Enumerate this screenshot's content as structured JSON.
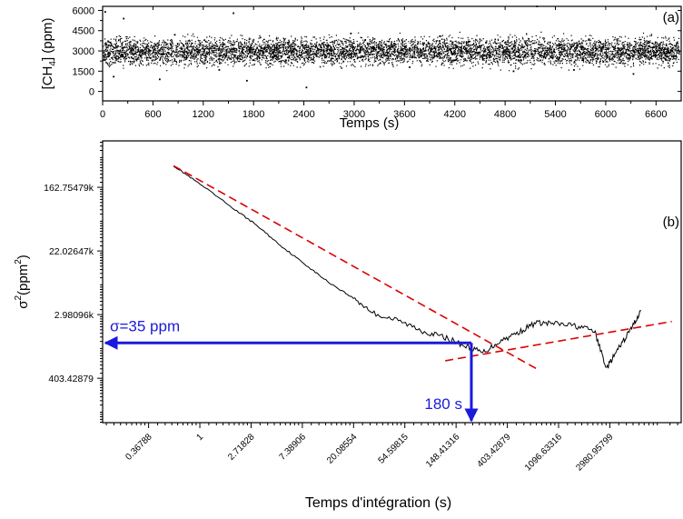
{
  "chart_data": [
    {
      "type": "scatter",
      "panel_label": "(a)",
      "title": "",
      "xlabel": "Temps (s)",
      "ylabel_main": "[CH",
      "ylabel_sub": "4",
      "ylabel_tail": "] (ppm)",
      "xlim": [
        0,
        6900
      ],
      "ylim": [
        -700,
        6300
      ],
      "xticks": [
        0,
        600,
        1200,
        1800,
        2400,
        3000,
        3600,
        4200,
        4800,
        5400,
        6000,
        6600
      ],
      "xtick_labels": [
        "0",
        "600",
        "1200",
        "1800",
        "2400",
        "3000",
        "3600",
        "4200",
        "4800",
        "5400",
        "6000",
        "6600"
      ],
      "yticks": [
        0,
        1500,
        3000,
        4500,
        6000
      ],
      "ytick_labels": [
        "0",
        "1500",
        "3000",
        "4500",
        "6000"
      ],
      "series": [
        {
          "x": [
            30,
            130,
            250,
            380,
            520,
            680,
            860,
            1050,
            1230,
            1390,
            1560,
            1720,
            1880,
            2050,
            2210,
            2430,
            2610,
            2790,
            2960,
            3130,
            3310,
            3490,
            3660,
            3840,
            4020,
            4190,
            4370,
            4550,
            4730,
            4900,
            5080,
            5180,
            5260,
            5440,
            5620,
            5800,
            5970,
            6150,
            6330,
            6510,
            6690,
            6850
          ],
          "y": [
            5900,
            1100,
            5400,
            2800,
            3300,
            900,
            4200,
            2500,
            3700,
            1600,
            5800,
            800,
            4000,
            2600,
            3600,
            300,
            3100,
            2400,
            4300,
            3800,
            2100,
            3500,
            1800,
            3000,
            4100,
            2300,
            3700,
            2700,
            3300,
            1500,
            3900,
            6300,
            2600,
            3400,
            1600,
            3800,
            2200,
            3200,
            1300,
            3700,
            2500,
            3600
          ]
        }
      ]
    },
    {
      "type": "line",
      "panel_label": "(b)",
      "title": "",
      "xlabel": "Temps d'intégration (s)",
      "ylabel_main": "σ",
      "ylabel_sup": "2",
      "ylabel_mid": "(ppm",
      "ylabel_sup2": "2",
      "ylabel_tail": ")",
      "xscale": "log",
      "yscale": "log",
      "xlim": [
        0.15,
        12000
      ],
      "ylim": [
        100,
        700000
      ],
      "xticks": [
        0.36788,
        1,
        2.71828,
        7.38906,
        20.08554,
        54.59815,
        148.41316,
        403.42879,
        1096.63316,
        2980.95799
      ],
      "xtick_labels": [
        "0.36788",
        "1",
        "2.71828",
        "7.38906",
        "20.08554",
        "54.59815",
        "148.41316",
        "403.42879",
        "1096.63316",
        "2980.95799"
      ],
      "yticks": [
        403.42879,
        2980.96,
        22026.47,
        162754.79
      ],
      "ytick_labels": [
        "403.42879",
        "2.98096k",
        "22.02647k",
        "162.75479k"
      ],
      "series": [
        {
          "name": "",
          "color": "#000000",
          "x": [
            0.6,
            1,
            2,
            3,
            5,
            8,
            12,
            20,
            30,
            50,
            80,
            120,
            180,
            250,
            350,
            500,
            700,
            1000,
            1500,
            2200,
            2800,
            3500,
            4500,
            5500
          ],
          "y": [
            320000,
            180000,
            80000,
            50000,
            25000,
            14000,
            8500,
            5000,
            3100,
            2400,
            1750,
            1450,
            1100,
            900,
            1300,
            1700,
            2300,
            2250,
            2100,
            1800,
            550,
            1000,
            1900,
            3400
          ]
        },
        {
          "name": "",
          "color": "#dd0000",
          "dashed": true,
          "x": [
            0.6,
            750
          ],
          "y": [
            320000,
            520
          ]
        },
        {
          "name": "",
          "color": "#dd0000",
          "dashed": true,
          "x": [
            120,
            10000
          ],
          "y": [
            700,
            2400
          ]
        }
      ],
      "annotations": [
        {
          "text": "σ=35 ppm",
          "color": "#1a1adc",
          "x_from": 200,
          "x_to": 0.15,
          "y": 1225
        },
        {
          "text": "180 s",
          "color": "#1a1adc",
          "x": 200,
          "y_from": 1225,
          "y_to": 100
        }
      ]
    }
  ]
}
